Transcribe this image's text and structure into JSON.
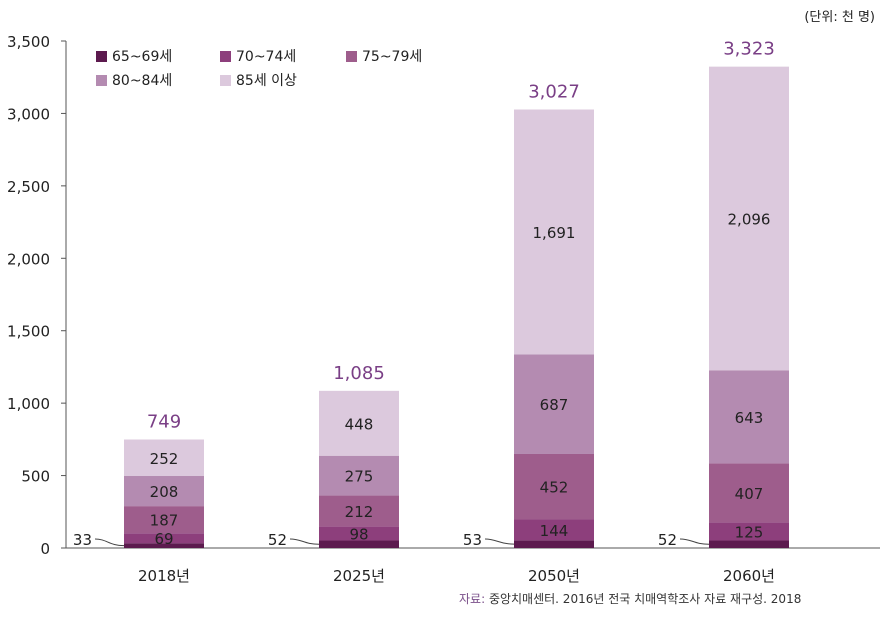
{
  "unit_label": "(단위: 천 명)",
  "source": {
    "label": "자료:",
    "text": " 중앙치매센터. 2016년 전국 치매역학조사 자료 재구성. 2018"
  },
  "chart_data": {
    "type": "bar",
    "stacked": true,
    "title": "",
    "xlabel": "",
    "ylabel": "",
    "ylim": [
      0,
      3500
    ],
    "yticks": [
      0,
      500,
      1000,
      1500,
      2000,
      2500,
      3000,
      3500
    ],
    "ytick_labels": [
      "0",
      "500",
      "1,000",
      "1,500",
      "2,000",
      "2,500",
      "3,000",
      "3,500"
    ],
    "categories": [
      "2018년",
      "2025년",
      "2050년",
      "2060년"
    ],
    "totals": [
      749,
      1085,
      3027,
      3323
    ],
    "total_labels": [
      "749",
      "1,085",
      "3,027",
      "3,323"
    ],
    "legend_position": "top-left",
    "series": [
      {
        "name": "65~69세",
        "color": "#5c1a4e",
        "values": [
          33,
          52,
          53,
          52
        ],
        "labels": [
          "33",
          "52",
          "53",
          "52"
        ],
        "label_outside": true
      },
      {
        "name": "70~74세",
        "color": "#8d3f7c",
        "values": [
          69,
          98,
          144,
          125
        ],
        "labels": [
          "69",
          "98",
          "144",
          "125"
        ]
      },
      {
        "name": "75~79세",
        "color": "#9e5d8c",
        "values": [
          187,
          212,
          452,
          407
        ],
        "labels": [
          "187",
          "212",
          "452",
          "407"
        ]
      },
      {
        "name": "80~84세",
        "color": "#b48bb1",
        "values": [
          208,
          275,
          687,
          643
        ],
        "labels": [
          "208",
          "275",
          "687",
          "643"
        ]
      },
      {
        "name": "85세 이상",
        "color": "#dcc9dd",
        "values": [
          252,
          448,
          1691,
          2096
        ],
        "labels": [
          "252",
          "448",
          "1,691",
          "2,096"
        ]
      }
    ],
    "total_color": "#7a3f86"
  }
}
